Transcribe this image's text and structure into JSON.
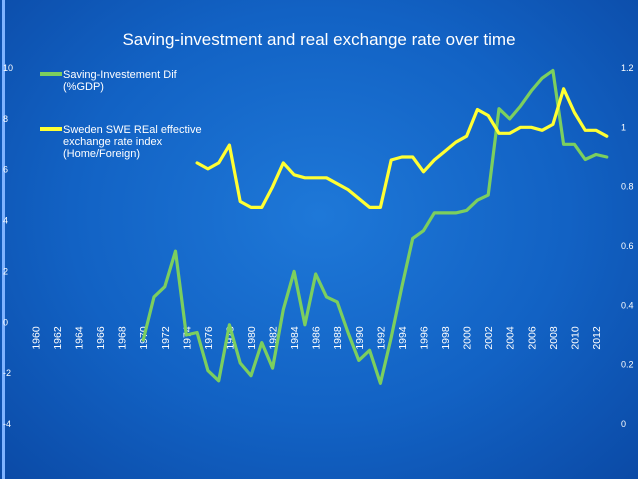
{
  "chart_data": {
    "type": "line",
    "title": "Saving-investment and real exchange rate over time",
    "legend_placement": "top-left",
    "x_ticks": [
      "1960",
      "1962",
      "1964",
      "1966",
      "1968",
      "1970",
      "1972",
      "1974",
      "1976",
      "1978",
      "1980",
      "1982",
      "1984",
      "1986",
      "1988",
      "1990",
      "1992",
      "1994",
      "1996",
      "1998",
      "2000",
      "2002",
      "2004",
      "2006",
      "2008",
      "2010",
      "2012"
    ],
    "left_axis": {
      "ylim": [
        -4,
        10
      ],
      "ticks": [
        "10",
        "8",
        "6",
        "4",
        "2",
        "0",
        "-2",
        "-4"
      ]
    },
    "right_axis": {
      "ylim": [
        0,
        1.2
      ],
      "ticks": [
        "1.2",
        "1",
        "0.8",
        "0.6",
        "0.4",
        "0.2",
        "0"
      ]
    },
    "series": [
      {
        "name": "Saving-Investement Dif (%GDP)",
        "legend_lines": [
          "Saving-Investement Dif",
          "(%GDP)"
        ],
        "axis": "left",
        "color": "#7ccf5e",
        "x": [
          1970,
          1971,
          1972,
          1973,
          1974,
          1975,
          1976,
          1977,
          1978,
          1979,
          1980,
          1981,
          1982,
          1983,
          1984,
          1985,
          1986,
          1987,
          1988,
          1989,
          1990,
          1991,
          1992,
          1993,
          1994,
          1995,
          1996,
          1997,
          1998,
          1999,
          2000,
          2001,
          2002,
          2003,
          2004,
          2005,
          2006,
          2007,
          2008,
          2009,
          2010,
          2011,
          2012,
          2013
        ],
        "y": [
          -0.7,
          1.0,
          1.4,
          2.8,
          -0.5,
          -0.4,
          -1.9,
          -2.3,
          -0.1,
          -1.6,
          -2.1,
          -0.8,
          -1.8,
          0.5,
          2.0,
          -0.1,
          1.9,
          1.0,
          0.8,
          -0.4,
          -1.5,
          -1.1,
          -2.4,
          -0.6,
          1.4,
          3.3,
          3.6,
          4.3,
          4.3,
          4.3,
          4.4,
          4.8,
          5.0,
          8.4,
          8.0,
          8.5,
          9.1,
          9.6,
          9.9,
          7.0,
          7.0,
          6.4,
          6.6,
          6.5
        ]
      },
      {
        "name": "Sweden SWE REal effective exchange rate index (Home/Foreign)",
        "legend_lines": [
          "Sweden SWE REal effective",
          "exchange rate index",
          "(Home/Foreign)"
        ],
        "axis": "right",
        "color": "#ffff33",
        "x": [
          1975,
          1976,
          1977,
          1978,
          1979,
          1980,
          1981,
          1982,
          1983,
          1984,
          1985,
          1986,
          1987,
          1988,
          1989,
          1990,
          1991,
          1992,
          1993,
          1994,
          1995,
          1996,
          1997,
          1998,
          1999,
          2000,
          2001,
          2002,
          2003,
          2004,
          2005,
          2006,
          2007,
          2008,
          2009,
          2010,
          2011,
          2012,
          2013
        ],
        "y": [
          0.88,
          0.86,
          0.88,
          0.94,
          0.75,
          0.73,
          0.73,
          0.8,
          0.88,
          0.84,
          0.83,
          0.83,
          0.83,
          0.81,
          0.79,
          0.76,
          0.73,
          0.73,
          0.89,
          0.9,
          0.9,
          0.85,
          0.89,
          0.92,
          0.95,
          0.97,
          1.06,
          1.04,
          0.98,
          0.98,
          1.0,
          1.0,
          0.99,
          1.01,
          1.13,
          1.05,
          0.99,
          0.99,
          0.97
        ]
      }
    ],
    "grid": false
  }
}
